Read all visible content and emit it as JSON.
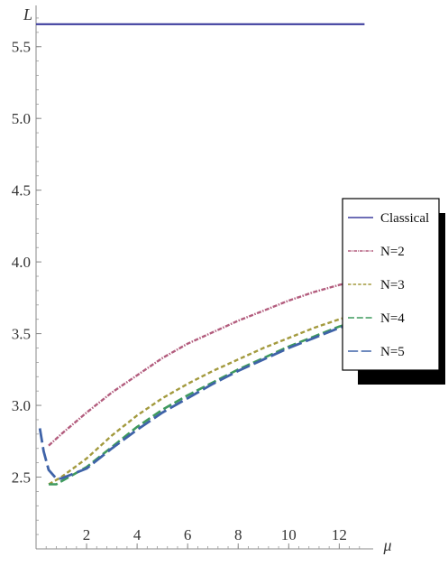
{
  "chart_data": {
    "type": "line",
    "xlabel": "μ",
    "ylabel": "L",
    "xlim": [
      0,
      13.2
    ],
    "ylim": [
      2.0,
      5.75
    ],
    "x_ticks": [
      "2",
      "4",
      "6",
      "8",
      "10",
      "12"
    ],
    "y_ticks": [
      "2.5",
      "3.0",
      "3.5",
      "4.0",
      "4.5",
      "5.0",
      "5.5"
    ],
    "grid": false,
    "legend_position": "right",
    "series": [
      {
        "name": "Classical",
        "color": "#3f3f9e",
        "dash": "solid",
        "x": [
          0,
          13
        ],
        "y": [
          5.657,
          5.657
        ]
      },
      {
        "name": "N=2",
        "color": "#b35d7e",
        "dash": "dashdot",
        "x": [
          0.5,
          1,
          2,
          3,
          4,
          5,
          6,
          7,
          8,
          9,
          10,
          11,
          12,
          13
        ],
        "y": [
          2.72,
          2.8,
          2.95,
          3.09,
          3.21,
          3.33,
          3.43,
          3.51,
          3.59,
          3.66,
          3.73,
          3.79,
          3.84,
          3.88
        ]
      },
      {
        "name": "N=3",
        "color": "#a39a3e",
        "dash": "short",
        "x": [
          0.5,
          1,
          2,
          3,
          4,
          5,
          6,
          7,
          8,
          9,
          10,
          11,
          12,
          13
        ],
        "y": [
          2.45,
          2.5,
          2.63,
          2.79,
          2.93,
          3.05,
          3.15,
          3.24,
          3.32,
          3.4,
          3.47,
          3.54,
          3.6,
          3.65
        ]
      },
      {
        "name": "N=4",
        "color": "#3f9a5e",
        "dash": "medium",
        "x": [
          0.5,
          0.8,
          1,
          2,
          3,
          4,
          5,
          6,
          7,
          8,
          9,
          10,
          11,
          12,
          13
        ],
        "y": [
          2.45,
          2.45,
          2.47,
          2.57,
          2.71,
          2.85,
          2.97,
          3.07,
          3.16,
          3.25,
          3.33,
          3.41,
          3.48,
          3.55,
          3.6
        ]
      },
      {
        "name": "N=5",
        "color": "#3f63a8",
        "dash": "long",
        "x": [
          0.15,
          0.3,
          0.5,
          0.8,
          1,
          2,
          3,
          4,
          5,
          6,
          7,
          8,
          9,
          10,
          11,
          12,
          13
        ],
        "y": [
          2.84,
          2.68,
          2.55,
          2.49,
          2.49,
          2.56,
          2.7,
          2.83,
          2.95,
          3.05,
          3.15,
          3.24,
          3.32,
          3.4,
          3.47,
          3.54,
          3.6
        ]
      }
    ]
  }
}
